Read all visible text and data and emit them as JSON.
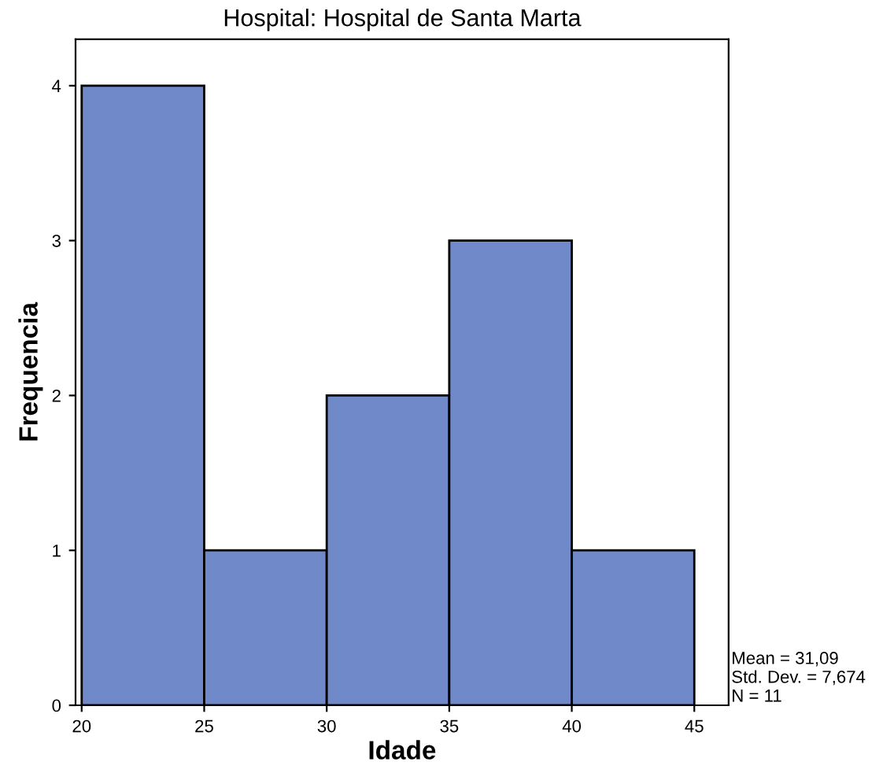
{
  "chart_data": {
    "type": "histogram",
    "title": "Hospital: Hospital de Santa Marta",
    "xlabel": "Idade",
    "ylabel": "Frequencia",
    "bins": [
      20,
      25,
      30,
      35,
      40,
      45
    ],
    "values": [
      4,
      1,
      2,
      3,
      1
    ],
    "color": "#6f89c9",
    "xlim": [
      19.75,
      46.4
    ],
    "ylim": [
      0,
      4.3
    ],
    "xticks": [
      20,
      25,
      30,
      35,
      40,
      45
    ],
    "yticks": [
      0,
      1,
      2,
      3,
      4
    ],
    "grid": false,
    "annotations": [
      "Mean = 31,09",
      "Std. Dev. = 7,674",
      "N = 11"
    ]
  }
}
